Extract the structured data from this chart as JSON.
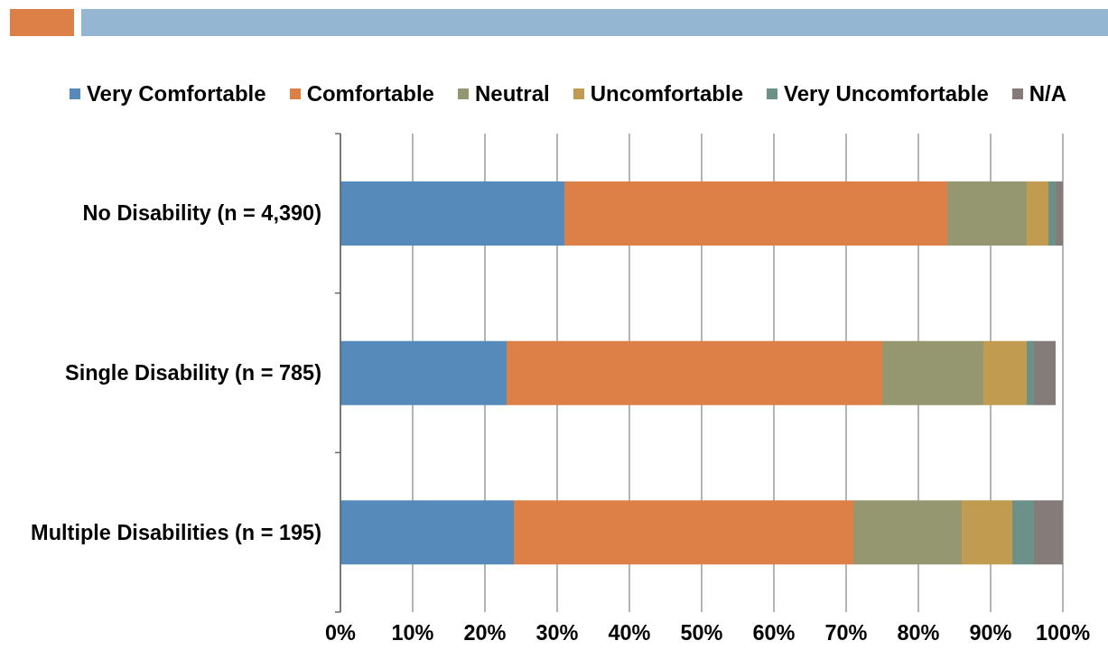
{
  "chart_data": {
    "type": "bar",
    "orientation": "horizontal",
    "stacked": true,
    "categories": [
      "No Disability (n = 4,390)",
      "Single Disability (n = 785)",
      "Multiple Disabilities (n = 195)"
    ],
    "series": [
      {
        "name": "Very Comfortable",
        "color": "#558aba",
        "values": [
          31,
          23,
          24
        ]
      },
      {
        "name": "Comfortable",
        "color": "#dd8047",
        "values": [
          53,
          52,
          47
        ]
      },
      {
        "name": "Neutral",
        "color": "#94976f",
        "values": [
          11,
          14,
          15
        ]
      },
      {
        "name": "Uncomfortable",
        "color": "#c09b50",
        "values": [
          3,
          6,
          7
        ]
      },
      {
        "name": "Very Uncomfortable",
        "color": "#6b9189",
        "values": [
          1,
          1,
          3
        ]
      },
      {
        "name": "N/A",
        "color": "#857b78",
        "values": [
          1,
          3,
          4
        ]
      }
    ],
    "xlim": [
      0,
      100
    ],
    "xticks": [
      {
        "value": 0,
        "label": "0%"
      },
      {
        "value": 10,
        "label": "10%"
      },
      {
        "value": 20,
        "label": "20%"
      },
      {
        "value": 30,
        "label": "30%"
      },
      {
        "value": 40,
        "label": "40%"
      },
      {
        "value": 50,
        "label": "50%"
      },
      {
        "value": 60,
        "label": "60%"
      },
      {
        "value": 70,
        "label": "70%"
      },
      {
        "value": 80,
        "label": "80%"
      },
      {
        "value": 90,
        "label": "90%"
      },
      {
        "value": 100,
        "label": "100%"
      }
    ],
    "grid": "x",
    "legend": "top"
  }
}
